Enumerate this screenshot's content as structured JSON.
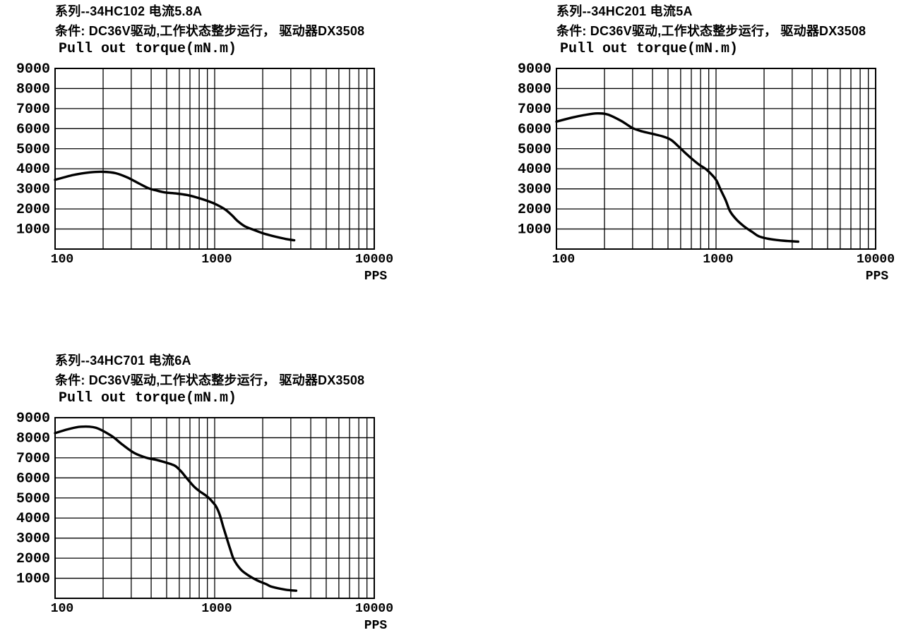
{
  "page": {
    "background": "#ffffff",
    "ink": "#000000"
  },
  "chart_data": [
    {
      "type": "line",
      "id": "34HC102",
      "series_label": "系列--34HC102 电流5.8A",
      "condition_label": "条件: DC36V驱动,工作状态整步运行， 驱动器DX3508",
      "title": "Pull out torque(mN.m)",
      "x_unit": "PPS",
      "x_scale": "log",
      "grid": true,
      "legend": "none",
      "xlim": [
        100,
        10000
      ],
      "ylim": [
        0,
        9000
      ],
      "y_tick_step": 1000,
      "y_tick_labels": [
        "9000",
        "8000",
        "7000",
        "6000",
        "5000",
        "4000",
        "3000",
        "2000",
        "1000"
      ],
      "x_ticks": [
        100,
        1000,
        10000
      ],
      "x_tick_labels": [
        "100",
        "1000",
        "10000"
      ],
      "points": [
        [
          100,
          3450
        ],
        [
          130,
          3690
        ],
        [
          165,
          3820
        ],
        [
          200,
          3850
        ],
        [
          240,
          3780
        ],
        [
          285,
          3560
        ],
        [
          335,
          3270
        ],
        [
          385,
          3030
        ],
        [
          430,
          2920
        ],
        [
          490,
          2820
        ],
        [
          575,
          2770
        ],
        [
          685,
          2680
        ],
        [
          795,
          2540
        ],
        [
          930,
          2360
        ],
        [
          1030,
          2210
        ],
        [
          1160,
          1980
        ],
        [
          1280,
          1690
        ],
        [
          1400,
          1380
        ],
        [
          1550,
          1130
        ],
        [
          1770,
          950
        ],
        [
          2000,
          790
        ],
        [
          2400,
          620
        ],
        [
          2800,
          500
        ],
        [
          3150,
          440
        ]
      ]
    },
    {
      "type": "line",
      "id": "34HC201",
      "series_label": "系列--34HC201 电流5A",
      "condition_label": "条件: DC36V驱动,工作状态整步运行， 驱动器DX3508",
      "title": "Pull out torque(mN.m)",
      "x_unit": "PPS",
      "x_scale": "log",
      "grid": true,
      "legend": "none",
      "xlim": [
        100,
        10000
      ],
      "ylim": [
        0,
        9000
      ],
      "y_tick_step": 1000,
      "y_tick_labels": [
        "9000",
        "8000",
        "7000",
        "6000",
        "5000",
        "4000",
        "3000",
        "2000",
        "1000"
      ],
      "x_ticks": [
        100,
        1000,
        10000
      ],
      "x_tick_labels": [
        "100",
        "1000",
        "10000"
      ],
      "points": [
        [
          100,
          6350
        ],
        [
          125,
          6550
        ],
        [
          150,
          6680
        ],
        [
          180,
          6760
        ],
        [
          210,
          6700
        ],
        [
          255,
          6380
        ],
        [
          300,
          6030
        ],
        [
          345,
          5860
        ],
        [
          400,
          5740
        ],
        [
          460,
          5620
        ],
        [
          520,
          5450
        ],
        [
          575,
          5150
        ],
        [
          640,
          4800
        ],
        [
          705,
          4500
        ],
        [
          785,
          4200
        ],
        [
          865,
          3980
        ],
        [
          960,
          3630
        ],
        [
          1010,
          3390
        ],
        [
          1065,
          2980
        ],
        [
          1150,
          2430
        ],
        [
          1225,
          1880
        ],
        [
          1350,
          1450
        ],
        [
          1500,
          1130
        ],
        [
          1700,
          830
        ],
        [
          1850,
          640
        ],
        [
          2100,
          520
        ],
        [
          2400,
          450
        ],
        [
          2800,
          400
        ],
        [
          3270,
          370
        ]
      ]
    },
    {
      "type": "line",
      "id": "34HC701",
      "series_label": "系列--34HC701 电流6A",
      "condition_label": "条件: DC36V驱动,工作状态整步运行， 驱动器DX3508",
      "title": "Pull out torque(mN.m)",
      "x_unit": "PPS",
      "x_scale": "log",
      "grid": true,
      "legend": "none",
      "xlim": [
        100,
        10000
      ],
      "ylim": [
        0,
        9000
      ],
      "y_tick_step": 1000,
      "y_tick_labels": [
        "9000",
        "8000",
        "7000",
        "6000",
        "5000",
        "4000",
        "3000",
        "2000",
        "1000"
      ],
      "x_ticks": [
        100,
        1000,
        10000
      ],
      "x_tick_labels": [
        "100",
        "1000",
        "10000"
      ],
      "points": [
        [
          100,
          8230
        ],
        [
          120,
          8420
        ],
        [
          145,
          8550
        ],
        [
          180,
          8500
        ],
        [
          225,
          8100
        ],
        [
          265,
          7650
        ],
        [
          315,
          7230
        ],
        [
          375,
          7000
        ],
        [
          440,
          6880
        ],
        [
          525,
          6700
        ],
        [
          570,
          6580
        ],
        [
          620,
          6300
        ],
        [
          665,
          6000
        ],
        [
          740,
          5580
        ],
        [
          800,
          5350
        ],
        [
          905,
          5050
        ],
        [
          970,
          4800
        ],
        [
          1020,
          4580
        ],
        [
          1075,
          4170
        ],
        [
          1130,
          3580
        ],
        [
          1190,
          3000
        ],
        [
          1255,
          2420
        ],
        [
          1320,
          1930
        ],
        [
          1460,
          1430
        ],
        [
          1620,
          1150
        ],
        [
          1850,
          890
        ],
        [
          2100,
          710
        ],
        [
          2270,
          580
        ],
        [
          2780,
          430
        ],
        [
          3240,
          380
        ]
      ]
    }
  ]
}
